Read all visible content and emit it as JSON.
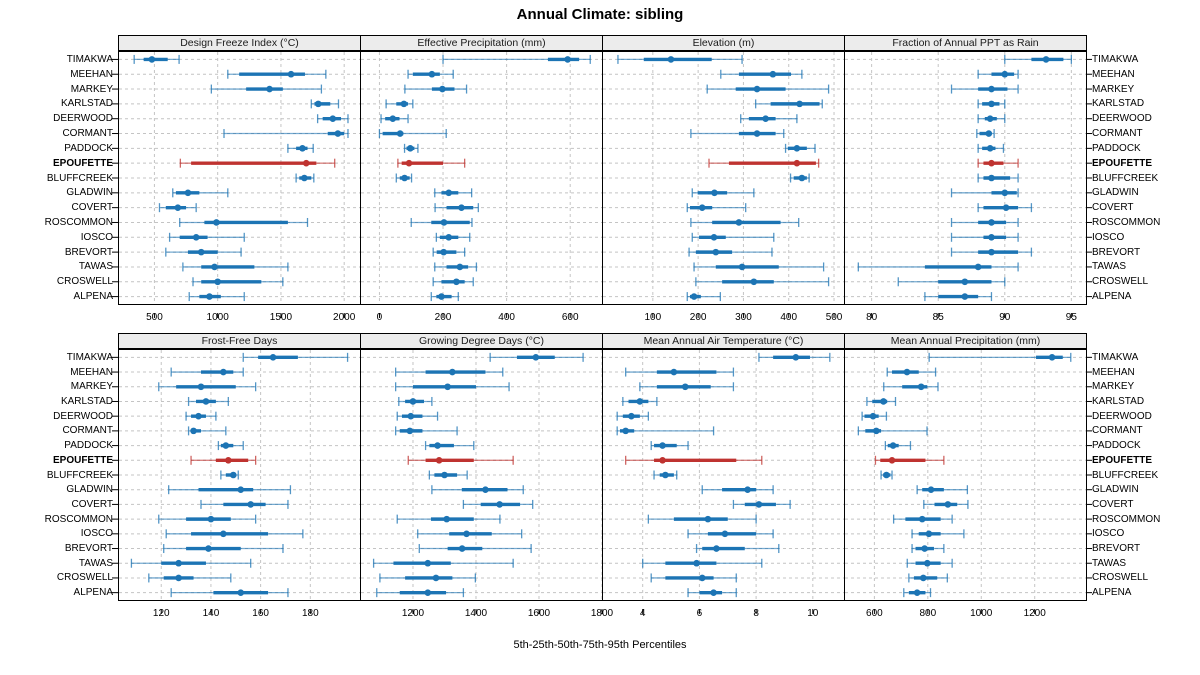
{
  "title": "Annual Climate: sibling",
  "footer": "5th-25th-50th-75th-95th Percentiles",
  "highlight_site": "EPOUFETTE",
  "colors": {
    "series": "#1c74b4",
    "highlight": "#bf3330",
    "strip_bg": "#ececec",
    "grid": "#c4c4c4",
    "border": "#000000"
  },
  "sites": [
    "TIMAKWA",
    "MEEHAN",
    "MARKEY",
    "KARLSTAD",
    "DEERWOOD",
    "CORMANT",
    "PADDOCK",
    "EPOUFETTE",
    "BLUFFCREEK",
    "GLADWIN",
    "COVERT",
    "ROSCOMMON",
    "IOSCO",
    "BREVORT",
    "TAWAS",
    "CROSWELL",
    "ALPENA"
  ],
  "chart_data": {
    "type": "dotplot",
    "subtype": "percentile-intervals",
    "percentiles": [
      5,
      25,
      50,
      75,
      95
    ],
    "legend_note": "thin line = 5th-95th, thick line = 25th-75th, dot = median",
    "layout": {
      "rows": 2,
      "cols": 4
    },
    "panels": [
      {
        "title": "Design Freeze Index (°C)",
        "row": 0,
        "col": 0,
        "xlim": [
          220,
          2125
        ],
        "ticks": [
          500,
          1000,
          1500,
          2000
        ],
        "values": {
          "TIMAKWA": [
            340,
            415,
            480,
            605,
            695
          ],
          "MEEHAN": [
            1080,
            1170,
            1580,
            1690,
            1855
          ],
          "MARKEY": [
            950,
            1225,
            1410,
            1515,
            1820
          ],
          "KARLSTAD": [
            1740,
            1765,
            1795,
            1890,
            1955
          ],
          "DEERWOOD": [
            1790,
            1830,
            1910,
            1975,
            2030
          ],
          "CORMANT": [
            1050,
            1870,
            1950,
            2000,
            2030
          ],
          "PADDOCK": [
            1555,
            1620,
            1670,
            1710,
            1755
          ],
          "EPOUFETTE": [
            705,
            790,
            1700,
            1780,
            1925
          ],
          "BLUFFCREEK": [
            1620,
            1645,
            1685,
            1740,
            1760
          ],
          "GLADWIN": [
            645,
            670,
            765,
            855,
            1080
          ],
          "COVERT": [
            540,
            590,
            685,
            750,
            830
          ],
          "ROSCOMMON": [
            700,
            895,
            990,
            1555,
            1710
          ],
          "IOSCO": [
            620,
            700,
            830,
            920,
            1210
          ],
          "BREVORT": [
            590,
            765,
            870,
            1000,
            1185
          ],
          "TAWAS": [
            725,
            870,
            975,
            1290,
            1555
          ],
          "CROSWELL": [
            805,
            870,
            1000,
            1345,
            1515
          ],
          "ALPENA": [
            775,
            855,
            935,
            1025,
            1210
          ]
        }
      },
      {
        "title": "Effective Precipitation (mm)",
        "row": 0,
        "col": 1,
        "xlim": [
          -58,
          700
        ],
        "ticks": [
          0,
          200,
          400,
          600
        ],
        "values": {
          "TIMAKWA": [
            200,
            530,
            592,
            628,
            663
          ],
          "MEEHAN": [
            90,
            105,
            165,
            190,
            232
          ],
          "MARKEY": [
            80,
            165,
            198,
            236,
            274
          ],
          "KARLSTAD": [
            21,
            53,
            77,
            90,
            105
          ],
          "DEERWOOD": [
            5,
            18,
            42,
            63,
            90
          ],
          "CORMANT": [
            0,
            10,
            65,
            75,
            210
          ],
          "PADDOCK": [
            79,
            85,
            97,
            110,
            121
          ],
          "EPOUFETTE": [
            58,
            70,
            93,
            200,
            268
          ],
          "BLUFFCREEK": [
            53,
            64,
            79,
            95,
            101
          ],
          "GLADWIN": [
            174,
            195,
            218,
            248,
            290
          ],
          "COVERT": [
            175,
            211,
            258,
            295,
            311
          ],
          "ROSCOMMON": [
            100,
            163,
            203,
            284,
            291
          ],
          "IOSCO": [
            179,
            190,
            218,
            248,
            284
          ],
          "BREVORT": [
            169,
            180,
            202,
            242,
            268
          ],
          "TAWAS": [
            174,
            211,
            253,
            279,
            305
          ],
          "CROSWELL": [
            169,
            195,
            242,
            268,
            295
          ],
          "ALPENA": [
            163,
            179,
            195,
            227,
            248
          ]
        }
      },
      {
        "title": "Elevation (m)",
        "row": 0,
        "col": 2,
        "xlim": [
          -10,
          522
        ],
        "ticks": [
          100,
          200,
          300,
          400,
          500
        ],
        "values": {
          "TIMAKWA": [
            23,
            80,
            140,
            230,
            297
          ],
          "MEEHAN": [
            250,
            290,
            365,
            405,
            429
          ],
          "MARKEY": [
            220,
            283,
            330,
            393,
            488
          ],
          "KARLSTAD": [
            327,
            360,
            424,
            468,
            474
          ],
          "DEERWOOD": [
            294,
            312,
            349,
            371,
            418
          ],
          "CORMANT": [
            184,
            290,
            330,
            371,
            389
          ],
          "PADDOCK": [
            393,
            398,
            418,
            440,
            458
          ],
          "EPOUFETTE": [
            224,
            268,
            418,
            460,
            466
          ],
          "BLUFFCREEK": [
            404,
            411,
            429,
            440,
            445
          ],
          "GLADWIN": [
            187,
            199,
            236,
            264,
            323
          ],
          "COVERT": [
            176,
            182,
            209,
            231,
            305
          ],
          "ROSCOMMON": [
            184,
            231,
            290,
            382,
            422
          ],
          "IOSCO": [
            187,
            202,
            235,
            261,
            367
          ],
          "BREVORT": [
            180,
            195,
            239,
            275,
            363
          ],
          "TAWAS": [
            191,
            239,
            297,
            378,
            477
          ],
          "CROSWELL": [
            195,
            253,
            323,
            367,
            488
          ],
          "ALPENA": [
            176,
            182,
            191,
            206,
            249
          ]
        }
      },
      {
        "title": "Fraction of Annual PPT as Rain",
        "row": 0,
        "col": 3,
        "xlim": [
          78,
          96.1
        ],
        "ticks": [
          80,
          85,
          90,
          95
        ],
        "values": {
          "TIMAKWA": [
            90,
            92,
            93.1,
            94.4,
            95
          ],
          "MEEHAN": [
            88,
            89,
            90,
            90.7,
            91
          ],
          "MARKEY": [
            86,
            88,
            89,
            90.2,
            91
          ],
          "KARLSTAD": [
            88,
            88.3,
            89,
            89.6,
            90
          ],
          "DEERWOOD": [
            88,
            88.5,
            88.9,
            89.4,
            90
          ],
          "CORMANT": [
            87.9,
            88.1,
            88.8,
            89,
            89.2
          ],
          "PADDOCK": [
            88,
            88.3,
            88.9,
            89.3,
            89.9
          ],
          "EPOUFETTE": [
            88,
            88.4,
            89,
            89.9,
            91
          ],
          "BLUFFCREEK": [
            88,
            88.4,
            89,
            90.4,
            91
          ],
          "GLADWIN": [
            86,
            89,
            90,
            90.9,
            91
          ],
          "COVERT": [
            88,
            88.4,
            90.1,
            91,
            92
          ],
          "ROSCOMMON": [
            86,
            88,
            89,
            90.1,
            91
          ],
          "IOSCO": [
            86,
            88.4,
            89,
            90.1,
            91
          ],
          "BREVORT": [
            86,
            88,
            89,
            91,
            92
          ],
          "TAWAS": [
            79,
            84,
            88,
            89,
            91
          ],
          "CROSWELL": [
            82,
            85,
            87,
            89,
            90
          ],
          "ALPENA": [
            84,
            85,
            87,
            88,
            89
          ]
        }
      },
      {
        "title": "Frost-Free Days",
        "row": 1,
        "col": 0,
        "xlim": [
          103,
          200
        ],
        "ticks": [
          120,
          140,
          160,
          180
        ],
        "values": {
          "TIMAKWA": [
            153,
            159,
            165,
            175,
            195
          ],
          "MEEHAN": [
            124,
            136,
            145,
            149,
            153
          ],
          "MARKEY": [
            119,
            126,
            136,
            150,
            158
          ],
          "KARLSTAD": [
            131,
            134,
            138,
            142,
            147
          ],
          "DEERWOOD": [
            130,
            132,
            135,
            138,
            142
          ],
          "CORMANT": [
            131,
            132,
            133,
            136,
            146
          ],
          "PADDOCK": [
            143,
            144,
            146,
            149,
            153
          ],
          "EPOUFETTE": [
            132,
            142,
            147,
            155,
            158
          ],
          "BLUFFCREEK": [
            144,
            146,
            149,
            150,
            151
          ],
          "GLADWIN": [
            123,
            135,
            152,
            157,
            172
          ],
          "COVERT": [
            136,
            145,
            156,
            162,
            171
          ],
          "ROSCOMMON": [
            119,
            130,
            140,
            148,
            158
          ],
          "IOSCO": [
            122,
            132,
            145,
            163,
            177
          ],
          "BREVORT": [
            121,
            130,
            139,
            152,
            169
          ],
          "TAWAS": [
            108,
            120,
            127,
            138,
            156
          ],
          "CROSWELL": [
            115,
            121,
            127,
            133,
            148
          ],
          "ALPENA": [
            124,
            141,
            152,
            163,
            171
          ]
        }
      },
      {
        "title": "Growing Degree Days (°C)",
        "row": 1,
        "col": 1,
        "xlim": [
          1035,
          1800
        ],
        "ticks": [
          1200,
          1400,
          1600,
          1800
        ],
        "values": {
          "TIMAKWA": [
            1445,
            1530,
            1590,
            1650,
            1740
          ],
          "MEEHAN": [
            1145,
            1240,
            1325,
            1430,
            1485
          ],
          "MARKEY": [
            1145,
            1200,
            1310,
            1400,
            1505
          ],
          "KARLSTAD": [
            1155,
            1175,
            1200,
            1235,
            1260
          ],
          "DEERWOOD": [
            1150,
            1165,
            1193,
            1230,
            1278
          ],
          "CORMANT": [
            1145,
            1158,
            1190,
            1230,
            1340
          ],
          "PADDOCK": [
            1240,
            1252,
            1278,
            1330,
            1393
          ],
          "EPOUFETTE": [
            1185,
            1240,
            1283,
            1393,
            1518
          ],
          "BLUFFCREEK": [
            1252,
            1268,
            1300,
            1340,
            1372
          ],
          "GLADWIN": [
            1260,
            1355,
            1430,
            1500,
            1550
          ],
          "COVERT": [
            1360,
            1415,
            1475,
            1540,
            1580
          ],
          "ROSCOMMON": [
            1150,
            1257,
            1307,
            1393,
            1476
          ],
          "IOSCO": [
            1215,
            1315,
            1370,
            1450,
            1545
          ],
          "BREVORT": [
            1220,
            1310,
            1356,
            1420,
            1575
          ],
          "TAWAS": [
            1075,
            1138,
            1247,
            1320,
            1518
          ],
          "CROSWELL": [
            1095,
            1175,
            1273,
            1325,
            1398
          ],
          "ALPENA": [
            1085,
            1158,
            1247,
            1305,
            1360
          ]
        }
      },
      {
        "title": "Mean Annual Air Temperature (°C)",
        "row": 1,
        "col": 2,
        "xlim": [
          2.6,
          11.1
        ],
        "ticks": [
          4,
          6,
          8,
          10
        ],
        "values": {
          "TIMAKWA": [
            8.1,
            8.6,
            9.4,
            9.9,
            10.6
          ],
          "MEEHAN": [
            3.4,
            4.5,
            5.1,
            6.6,
            7.2
          ],
          "MARKEY": [
            3.9,
            4.5,
            5.5,
            6.4,
            7.2
          ],
          "KARLSTAD": [
            3.3,
            3.5,
            3.9,
            4.2,
            4.5
          ],
          "DEERWOOD": [
            3.1,
            3.3,
            3.6,
            3.9,
            4.2
          ],
          "CORMANT": [
            3.1,
            3.2,
            3.4,
            3.7,
            6.5
          ],
          "PADDOCK": [
            4.3,
            4.4,
            4.7,
            5.2,
            5.6
          ],
          "EPOUFETTE": [
            3.4,
            4.4,
            4.7,
            7.3,
            8.2
          ],
          "BLUFFCREEK": [
            4.4,
            4.6,
            4.8,
            5.1,
            5.2
          ],
          "GLADWIN": [
            6.1,
            6.8,
            7.7,
            8.0,
            8.6
          ],
          "COVERT": [
            7.2,
            7.6,
            8.1,
            8.7,
            9.2
          ],
          "ROSCOMMON": [
            4.2,
            5.1,
            6.3,
            7.0,
            8.0
          ],
          "IOSCO": [
            5.6,
            6.3,
            6.9,
            8.0,
            8.6
          ],
          "BREVORT": [
            5.9,
            6.1,
            6.6,
            7.6,
            8.8
          ],
          "TAWAS": [
            4.0,
            4.8,
            5.9,
            6.6,
            8.2
          ],
          "CROSWELL": [
            4.3,
            4.8,
            6.1,
            6.5,
            7.3
          ],
          "ALPENA": [
            5.6,
            6.0,
            6.5,
            6.8,
            7.3
          ]
        }
      },
      {
        "title": "Mean Annual Precipitation (mm)",
        "row": 1,
        "col": 3,
        "xlim": [
          490,
          1392
        ],
        "ticks": [
          600,
          800,
          1000,
          1200
        ],
        "values": {
          "TIMAKWA": [
            805,
            1205,
            1265,
            1305,
            1335
          ],
          "MEEHAN": [
            648,
            666,
            722,
            766,
            829
          ],
          "MARKEY": [
            635,
            704,
            775,
            798,
            838
          ],
          "KARLSTAD": [
            572,
            592,
            634,
            648,
            679
          ],
          "DEERWOOD": [
            554,
            563,
            595,
            616,
            645
          ],
          "CORMANT": [
            540,
            566,
            607,
            625,
            797
          ],
          "PADDOCK": [
            641,
            650,
            670,
            691,
            735
          ],
          "EPOUFETTE": [
            604,
            622,
            666,
            791,
            860
          ],
          "BLUFFCREEK": [
            625,
            633,
            645,
            660,
            666
          ],
          "GLADWIN": [
            760,
            779,
            812,
            860,
            948
          ],
          "COVERT": [
            785,
            825,
            875,
            910,
            950
          ],
          "ROSCOMMON": [
            672,
            716,
            779,
            848,
            891
          ],
          "IOSCO": [
            741,
            766,
            804,
            848,
            935
          ],
          "BREVORT": [
            741,
            754,
            788,
            823,
            860
          ],
          "TAWAS": [
            723,
            754,
            798,
            848,
            891
          ],
          "CROSWELL": [
            729,
            748,
            783,
            835,
            873
          ],
          "ALPENA": [
            710,
            729,
            760,
            791,
            810
          ]
        }
      }
    ]
  }
}
